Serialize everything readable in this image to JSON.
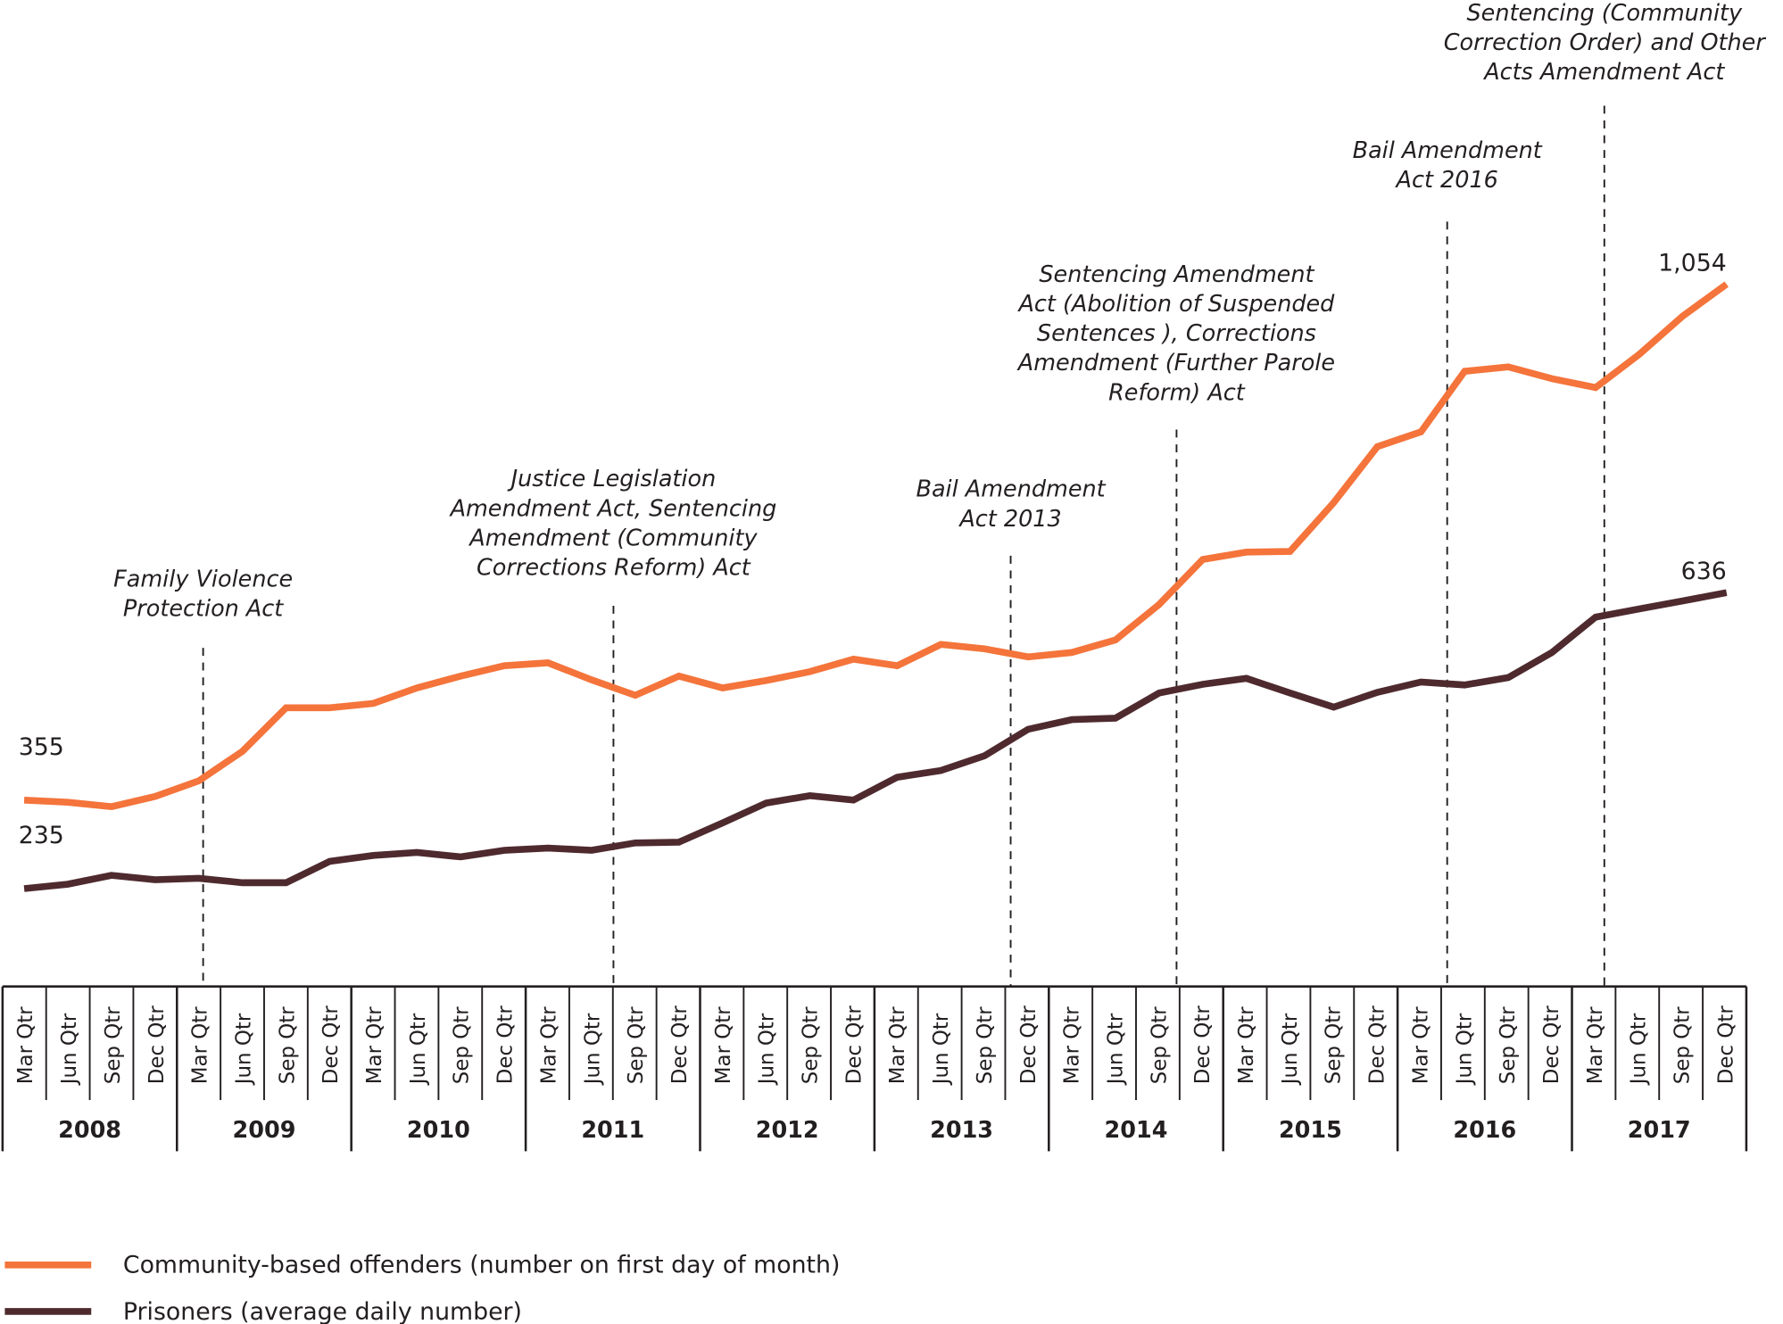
{
  "chart_data": {
    "type": "line",
    "title": "",
    "xlabel": "",
    "ylabel": "",
    "grid": false,
    "legend_placement": "bottom-left",
    "years": [
      "2008",
      "2009",
      "2010",
      "2011",
      "2012",
      "2013",
      "2014",
      "2015",
      "2016",
      "2017"
    ],
    "quarter_labels": [
      "Mar Qtr",
      "Jun Qtr",
      "Sep Qtr",
      "Dec Qtr"
    ],
    "series": [
      {
        "name": "Community-based  offenders (number on first day of month)",
        "color": "#F4743B",
        "values": [
          355,
          352,
          346,
          360,
          381,
          421,
          480,
          480,
          486,
          507,
          523,
          537,
          541,
          518,
          497,
          523,
          507,
          517,
          529,
          546,
          537,
          566,
          560,
          549,
          555,
          572,
          620,
          681,
          691,
          692,
          758,
          834,
          854,
          936,
          942,
          926,
          914,
          959,
          1011,
          1054
        ],
        "start_label": "355",
        "end_label": "1,054"
      },
      {
        "name": "Prisoners (average daily number)",
        "color": "#4E2A2E",
        "values": [
          235,
          241,
          253,
          247,
          249,
          243,
          243,
          272,
          280,
          284,
          278,
          287,
          290,
          287,
          297,
          298,
          324,
          351,
          361,
          355,
          386,
          395,
          415,
          451,
          464,
          466,
          500,
          512,
          520,
          500,
          481,
          501,
          515,
          511,
          521,
          555,
          603,
          614,
          625,
          636
        ],
        "start_label": "235",
        "end_label": "636"
      }
    ],
    "annotations": [
      {
        "quarter_index": 4.1,
        "lines": [
          "Family Violence",
          "Protection Act"
        ]
      },
      {
        "quarter_index": 13.5,
        "lines": [
          "Justice Legislation",
          "Amendment Act, Sentencing",
          "Amendment (Community",
          "Corrections Reform) Act"
        ]
      },
      {
        "quarter_index": 22.6,
        "lines": [
          "Bail Amendment",
          "Act 2013"
        ]
      },
      {
        "quarter_index": 26.4,
        "lines": [
          "Sentencing Amendment",
          "Act (Abolition of Suspended",
          "Sentences ), Corrections",
          "Amendment (Further Parole",
          "Reform) Act"
        ]
      },
      {
        "quarter_index": 32.6,
        "lines": [
          "Bail Amendment",
          "Act 2016"
        ]
      },
      {
        "quarter_index": 36.2,
        "lines": [
          "Sentencing (Community",
          "Correction Order) and Other",
          "Acts Amendment Act"
        ]
      }
    ]
  }
}
